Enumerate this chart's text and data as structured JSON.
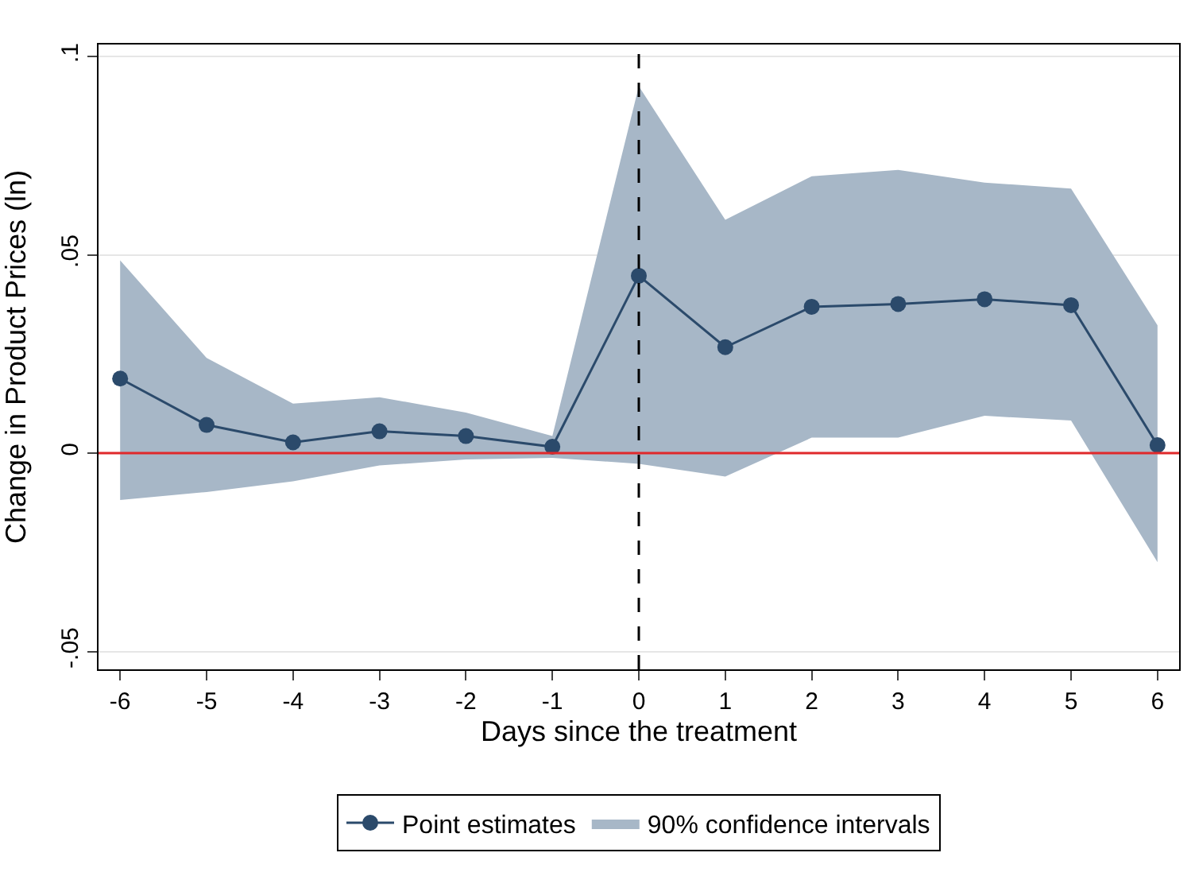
{
  "chart_data": {
    "type": "line",
    "xlabel": "Days since the treatment",
    "ylabel": "Change in Product Prices (ln)",
    "x": [
      -6,
      -5,
      -4,
      -3,
      -2,
      -1,
      0,
      1,
      2,
      3,
      4,
      5,
      6
    ],
    "series": [
      {
        "name": "Point estimates",
        "color": "#2b4a6b",
        "marker": "circle",
        "values": [
          0.0188,
          0.0071,
          0.0027,
          0.0055,
          0.0043,
          0.0016,
          0.0447,
          0.0267,
          0.0369,
          0.0376,
          0.0388,
          0.0373,
          0.002
        ]
      },
      {
        "name": "90% confidence intervals",
        "type": "area",
        "color": "#a7b7c7",
        "values": [
          null,
          null,
          null,
          null,
          null,
          null,
          null,
          null,
          null,
          null,
          null,
          null,
          null
        ],
        "lower": [
          -0.0118,
          -0.0098,
          -0.0071,
          -0.0031,
          -0.0016,
          -0.0012,
          -0.0027,
          -0.0059,
          0.0039,
          0.0039,
          0.0094,
          0.0082,
          -0.0275
        ],
        "upper": [
          0.0486,
          0.024,
          0.0125,
          0.0141,
          0.0102,
          0.0043,
          0.0925,
          0.0588,
          0.0698,
          0.0714,
          0.0682,
          0.0667,
          0.0322
        ]
      }
    ],
    "xlim": [
      -6.25,
      6.25
    ],
    "xticks": [
      -6,
      -5,
      -4,
      -3,
      -2,
      -1,
      0,
      1,
      2,
      3,
      4,
      5,
      6
    ],
    "ylim": [
      -0.0545,
      0.103
    ],
    "yticks": [
      {
        "value": -0.05,
        "label": "-.05"
      },
      0,
      {
        "value": 0.05,
        "label": ".05"
      },
      {
        "value": 0.1,
        "label": ".1"
      }
    ],
    "ref_lines": [
      {
        "axis": "y",
        "value": 0,
        "color": "#e0292b",
        "line_style": "solid"
      },
      {
        "axis": "x",
        "value": 0,
        "color": "#000000",
        "line_style": "dashed"
      }
    ],
    "grid": "y",
    "legend": "bottom"
  }
}
